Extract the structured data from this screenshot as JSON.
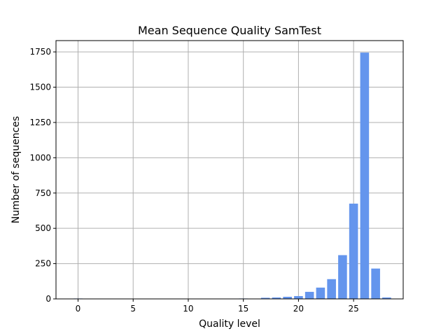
{
  "chart_data": {
    "type": "bar",
    "title": "Mean Sequence Quality SamTest",
    "xlabel": "Quality level",
    "ylabel": "Number of sequences",
    "xlim": [
      -2,
      29.5
    ],
    "ylim": [
      0,
      1830
    ],
    "x_ticks": [
      0,
      5,
      10,
      15,
      20,
      25
    ],
    "y_ticks": [
      0,
      250,
      500,
      750,
      1000,
      1250,
      1500,
      1750
    ],
    "grid": true,
    "bar_color": "#6495ed",
    "x": [
      0,
      9,
      15,
      17,
      18,
      19,
      20,
      21,
      22,
      23,
      24,
      25,
      26,
      27,
      28
    ],
    "values": [
      3,
      2,
      3,
      8,
      10,
      15,
      20,
      50,
      80,
      140,
      310,
      675,
      1745,
      215,
      10
    ]
  }
}
